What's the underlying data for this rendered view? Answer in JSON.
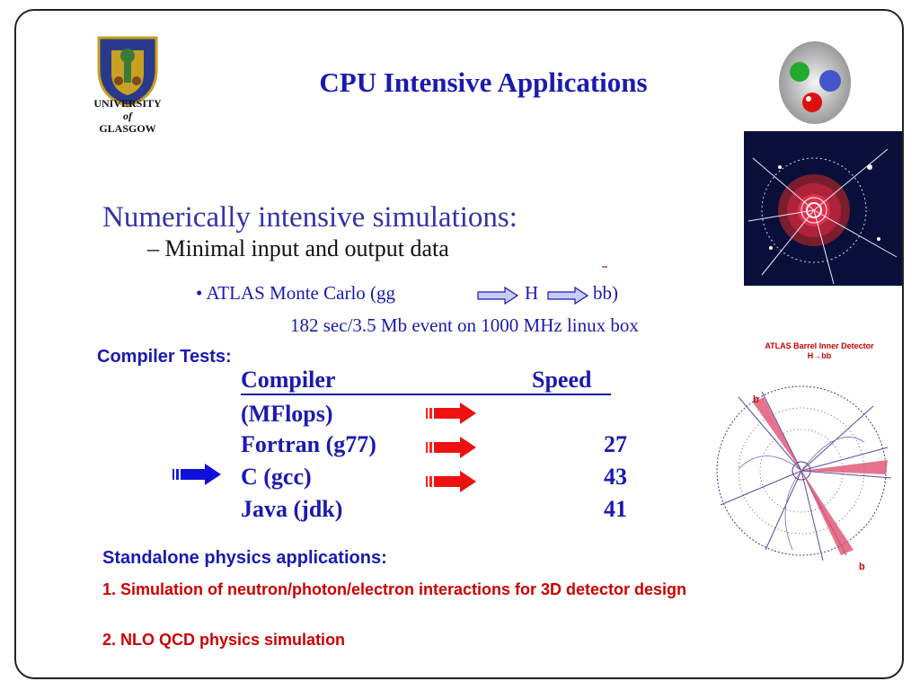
{
  "logo": {
    "line1": "UNIVERSITY",
    "line2": "of",
    "line3": "GLASGOW"
  },
  "title": "CPU Intensive Applications",
  "heading": "Numerically intensive simulations:",
  "subpoint": "Minimal input and output data",
  "bullet": {
    "prefix": "ATLAS Monte Carlo (gg",
    "h": "H",
    "bb": "bb)"
  },
  "event_line": "182 sec/3.5 Mb event on 1000 MHz linux box",
  "compiler_tests": "Compiler Tests:",
  "table": {
    "col1": "Compiler",
    "col2": "Speed",
    "unit": "(MFlops)",
    "rows": [
      {
        "name": "Fortran (g77)",
        "speed": "27"
      },
      {
        "name": "C (gcc)",
        "speed": "43"
      },
      {
        "name": "Java (jdk)",
        "speed": "41"
      }
    ]
  },
  "standalone": "Standalone physics applications:",
  "items": [
    "1. Simulation of neutron/photon/electron interactions for 3D detector design",
    "2. NLO QCD physics simulation"
  ],
  "detector": {
    "label1": "ATLAS Barrel Inner Detector",
    "label2": "H→bb",
    "b1": "b",
    "b2": "b"
  },
  "colors": {
    "accent": "#1a1ab0",
    "red": "#cc0000"
  }
}
